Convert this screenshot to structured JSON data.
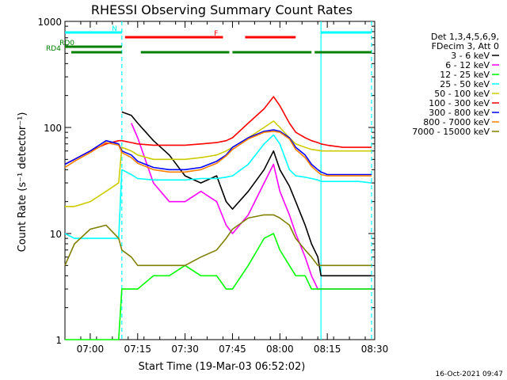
{
  "chart_data": {
    "type": "line",
    "title": "RHESSI Observing Summary Count Rates",
    "xlabel": "Start Time (19-Mar-03 06:52:02)",
    "ylabel": "Count Rate (s⁻¹ detector⁻¹)",
    "y_scale": "log",
    "ylim": [
      1,
      1000
    ],
    "xlim": [
      "06:52",
      "08:30"
    ],
    "x_tick_labels": [
      "07:00",
      "07:15",
      "07:30",
      "07:45",
      "08:00",
      "08:15",
      "08:30"
    ],
    "y_tick_labels": [
      "1",
      "10",
      "100",
      "1000"
    ],
    "timestamp": "16-Oct-2021 09:47",
    "legend": {
      "position": "right",
      "header_lines": [
        "Det 1,3,4,5,6,9,",
        "FDecim 3, Att 0"
      ],
      "entries": [
        {
          "label": "3 - 6 keV",
          "color": "#000000"
        },
        {
          "label": "6 - 12 keV",
          "color": "#ff00ff"
        },
        {
          "label": "12 - 25 keV",
          "color": "#00ff00"
        },
        {
          "label": "25 - 50 keV",
          "color": "#00ffff"
        },
        {
          "label": "50 - 100 keV",
          "color": "#cccc00"
        },
        {
          "label": "100 - 300 keV",
          "color": "#ff0000"
        },
        {
          "label": "300 - 800 keV",
          "color": "#0000ff"
        },
        {
          "label": "800 - 7000 keV",
          "color": "#ff8000"
        },
        {
          "label": "7000 - 15000 keV",
          "color": "#808000"
        }
      ]
    },
    "flags": [
      {
        "label": "N",
        "color": "#00ffff",
        "segments": [
          [
            "06:52",
            "07:10"
          ],
          [
            "08:13",
            "08:29"
          ]
        ]
      },
      {
        "label": "F",
        "color": "#ff0000",
        "segments": [
          [
            "07:11",
            "07:42"
          ],
          [
            "07:49",
            "08:05"
          ]
        ]
      },
      {
        "label": "RD0",
        "color": "#008000",
        "segments": [
          [
            "06:52",
            "07:10"
          ]
        ]
      },
      {
        "label": "RD4",
        "color": "#008000",
        "segments": [
          [
            "06:54",
            "07:10"
          ],
          [
            "07:16",
            "07:44"
          ],
          [
            "07:45",
            "08:10"
          ],
          [
            "08:11",
            "08:29"
          ]
        ]
      }
    ],
    "vlines": [
      {
        "x": "07:10",
        "color": "#00ffff",
        "style": "dashed"
      },
      {
        "x": "08:13",
        "color": "#00ffff",
        "style": "solid"
      },
      {
        "x": "08:29",
        "color": "#00ffff",
        "style": "dashed"
      }
    ],
    "x": [
      "06:52",
      "06:55",
      "07:00",
      "07:05",
      "07:09",
      "07:10",
      "07:13",
      "07:15",
      "07:20",
      "07:25",
      "07:30",
      "07:35",
      "07:40",
      "07:43",
      "07:45",
      "07:50",
      "07:55",
      "07:58",
      "08:00",
      "08:03",
      "08:05",
      "08:08",
      "08:10",
      "08:12",
      "08:13",
      "08:15",
      "08:20",
      "08:25",
      "08:29"
    ],
    "series": [
      {
        "name": "3 - 6 keV",
        "color": "#000000",
        "values": [
          null,
          null,
          null,
          null,
          null,
          140,
          130,
          110,
          75,
          55,
          35,
          30,
          35,
          20,
          17,
          25,
          40,
          60,
          40,
          28,
          20,
          12,
          8,
          6,
          4,
          4,
          4,
          4,
          4
        ]
      },
      {
        "name": "6 - 12 keV",
        "color": "#ff00ff",
        "values": [
          null,
          null,
          null,
          null,
          null,
          null,
          110,
          80,
          30,
          20,
          20,
          25,
          20,
          12,
          10,
          15,
          30,
          45,
          25,
          15,
          10,
          6,
          4,
          3,
          3,
          3,
          3,
          3,
          3
        ]
      },
      {
        "name": "12 - 25 keV",
        "color": "#00ff00",
        "values": [
          1,
          1,
          1,
          1,
          1,
          3,
          3,
          3,
          4,
          4,
          5,
          4,
          4,
          3,
          3,
          5,
          9,
          10,
          7,
          5,
          4,
          4,
          3,
          3,
          3,
          3,
          3,
          3,
          3
        ]
      },
      {
        "name": "25 - 50 keV",
        "color": "#00ffff",
        "values": [
          10,
          9,
          9,
          9,
          9,
          40,
          36,
          33,
          32,
          32,
          32,
          33,
          33,
          34,
          35,
          45,
          70,
          85,
          70,
          40,
          35,
          34,
          33,
          32,
          31,
          31,
          31,
          31,
          30
        ]
      },
      {
        "name": "50 - 100 keV",
        "color": "#cccc00",
        "values": [
          18,
          18,
          20,
          25,
          30,
          65,
          60,
          55,
          50,
          50,
          50,
          52,
          55,
          60,
          65,
          80,
          100,
          115,
          100,
          80,
          70,
          65,
          62,
          61,
          60,
          60,
          60,
          60,
          60
        ]
      },
      {
        "name": "100 - 300 keV",
        "color": "#ff0000",
        "values": [
          45,
          50,
          60,
          70,
          75,
          75,
          72,
          70,
          68,
          68,
          68,
          70,
          72,
          75,
          80,
          110,
          150,
          195,
          160,
          110,
          90,
          80,
          75,
          72,
          70,
          68,
          65,
          65,
          65
        ]
      },
      {
        "name": "300 - 800 keV",
        "color": "#0000ff",
        "values": [
          45,
          50,
          60,
          75,
          70,
          60,
          55,
          48,
          42,
          40,
          40,
          42,
          48,
          55,
          65,
          80,
          92,
          95,
          92,
          80,
          65,
          55,
          45,
          40,
          38,
          36,
          36,
          36,
          36
        ]
      },
      {
        "name": "800 - 7000 keV",
        "color": "#ff8000",
        "values": [
          42,
          48,
          58,
          72,
          68,
          58,
          52,
          46,
          40,
          38,
          38,
          40,
          46,
          54,
          62,
          78,
          90,
          92,
          90,
          78,
          62,
          52,
          43,
          38,
          36,
          35,
          35,
          35,
          35
        ]
      },
      {
        "name": "7000 - 15000 keV",
        "color": "#808000",
        "values": [
          5,
          8,
          11,
          12,
          9,
          7,
          6,
          5,
          5,
          5,
          5,
          6,
          7,
          9,
          11,
          14,
          15,
          15,
          14,
          12,
          9,
          7,
          6,
          5,
          5,
          5,
          5,
          5,
          5
        ]
      }
    ]
  }
}
